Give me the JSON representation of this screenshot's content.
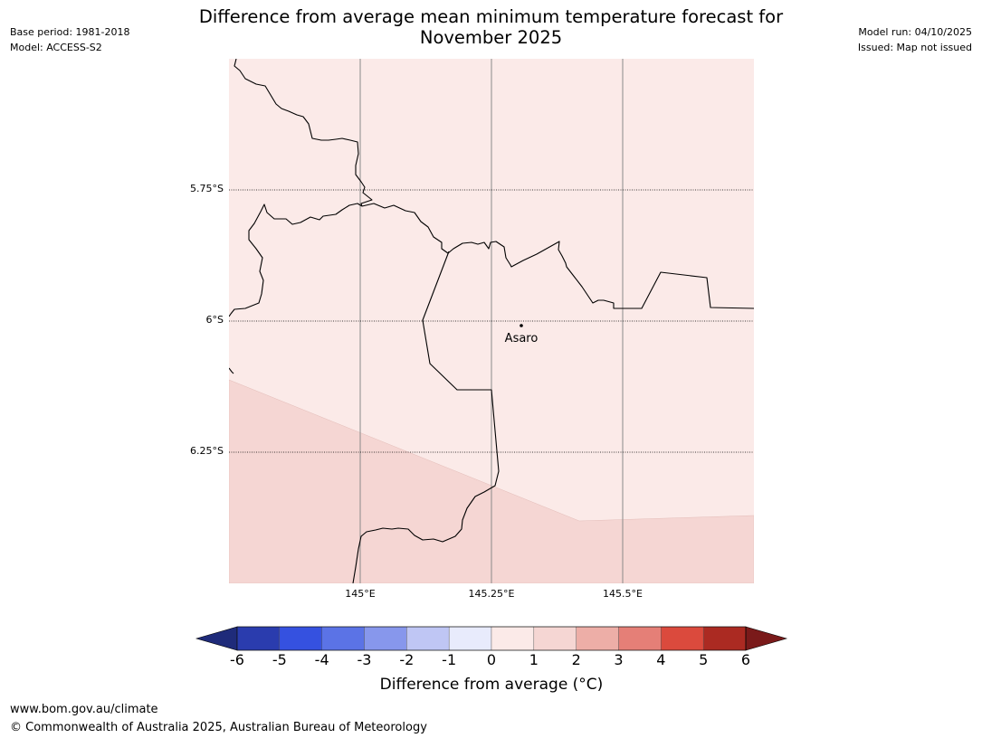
{
  "header": {
    "base_period": "Base period: 1981-2018",
    "model": "Model: ACCESS-S2",
    "model_run": "Model run: 04/10/2025",
    "issued": "Issued: Map not issued",
    "title_line1": "Difference from average mean minimum temperature forecast for",
    "title_line2": "November 2025"
  },
  "map": {
    "latitude_labels": [
      "5.75°S",
      "6°S",
      "6.25°S"
    ],
    "longitude_labels": [
      "145°E",
      "145.25°E",
      "145.5°E"
    ],
    "place": {
      "name": "Asaro"
    },
    "regions": [
      {
        "category": "0 to 1",
        "color": "#fbeae8"
      },
      {
        "category": "1 to 2",
        "color": "#f5d6d3"
      }
    ]
  },
  "colorbar": {
    "ticks": [
      "-6",
      "-5",
      "-4",
      "-3",
      "-2",
      "-1",
      "0",
      "1",
      "2",
      "3",
      "4",
      "5",
      "6"
    ],
    "under_color": "#1f2b7a",
    "over_color": "#7a1a1a",
    "colors": [
      "#2a3cae",
      "#3551e0",
      "#5b73e6",
      "#8797ec",
      "#bfc6f4",
      "#e8ebfc",
      "#fbeae8",
      "#f5d6d3",
      "#edaea7",
      "#e57f77",
      "#db4a3d",
      "#ab2a22"
    ],
    "label": "Difference from average (°C)"
  },
  "footer": {
    "url": "www.bom.gov.au/climate",
    "copyright": "© Commonwealth of Australia 2025, Australian Bureau of Meteorology"
  }
}
